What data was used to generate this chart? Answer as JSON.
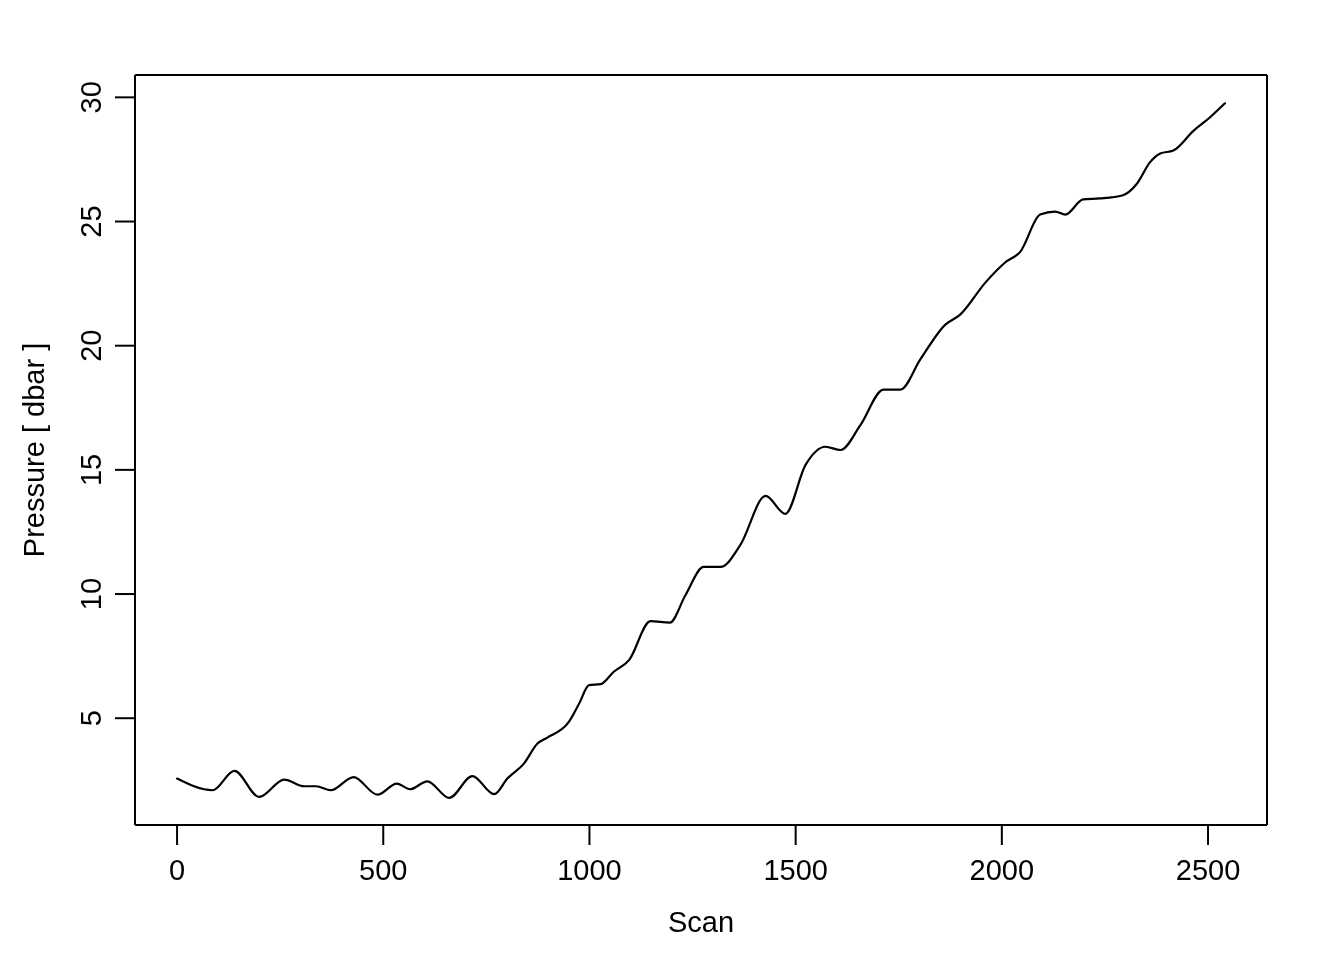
{
  "chart_data": {
    "type": "line",
    "xlabel": "Scan",
    "ylabel": "Pressure [ dbar ]",
    "color": "#000000",
    "x": [
      0,
      86,
      139,
      199,
      260,
      308,
      337,
      373,
      428,
      486,
      533,
      565,
      607,
      660,
      716,
      769,
      801,
      841,
      874,
      898,
      950,
      975,
      999,
      1027,
      1059,
      1096,
      1148,
      1195,
      1233,
      1277,
      1318,
      1366,
      1427,
      1475,
      1524,
      1572,
      1609,
      1657,
      1713,
      1754,
      1802,
      1863,
      1899,
      1960,
      2008,
      2045,
      2093,
      2129,
      2154,
      2197,
      2238,
      2292,
      2328,
      2359,
      2384,
      2416,
      2464,
      2505,
      2541
    ],
    "values": [
      2.57,
      2.1,
      2.88,
      1.83,
      2.53,
      2.26,
      2.26,
      2.1,
      2.63,
      1.92,
      2.37,
      2.14,
      2.46,
      1.79,
      2.67,
      1.94,
      2.57,
      3.17,
      3.98,
      4.22,
      4.85,
      5.59,
      6.33,
      6.37,
      6.87,
      7.34,
      8.91,
      8.85,
      9.96,
      11.09,
      11.09,
      11.98,
      13.95,
      13.23,
      15.2,
      15.93,
      15.8,
      16.8,
      18.23,
      18.23,
      19.44,
      20.85,
      21.25,
      22.54,
      23.35,
      23.79,
      25.28,
      25.4,
      25.28,
      25.89,
      25.93,
      26.05,
      26.53,
      27.38,
      27.74,
      27.86,
      28.64,
      29.2,
      29.76
    ],
    "xlim": [
      -102,
      2643
    ],
    "ylim": [
      0.7,
      30.9
    ],
    "xticks": [
      0,
      500,
      1000,
      1500,
      2000,
      2500
    ],
    "yticks": [
      5,
      10,
      15,
      20,
      25,
      30
    ]
  }
}
